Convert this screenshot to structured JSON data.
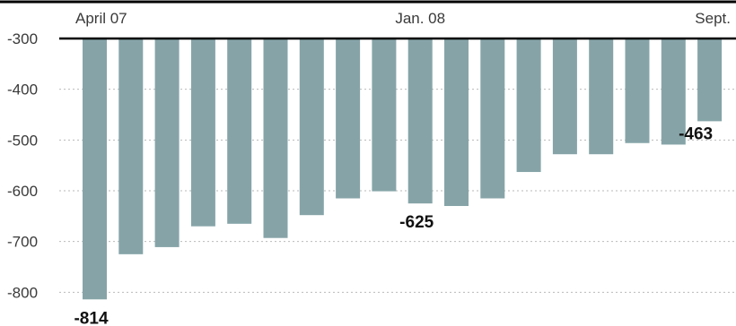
{
  "chart_data": {
    "type": "bar",
    "title": "",
    "xlabel": "",
    "ylabel": "",
    "x_tick_labels": [
      {
        "index": 0,
        "label": "April 07"
      },
      {
        "index": 9,
        "label": "Jan. 08"
      },
      {
        "index": 17,
        "label": "Sept."
      }
    ],
    "values": [
      -814,
      -725,
      -711,
      -670,
      -665,
      -693,
      -648,
      -615,
      -601,
      -625,
      -630,
      -615,
      -563,
      -528,
      -528,
      -506,
      -509,
      -463
    ],
    "data_labels": [
      {
        "index": 0,
        "text": "-814"
      },
      {
        "index": 9,
        "text": "-625"
      },
      {
        "index": 17,
        "text": "-463"
      }
    ],
    "y_ticks": [
      -300,
      -400,
      -500,
      -600,
      -700,
      -800
    ],
    "ylim": [
      -830,
      -300
    ],
    "grid": true,
    "bar_color": "#86a4a8",
    "axis_color": "#000000"
  }
}
